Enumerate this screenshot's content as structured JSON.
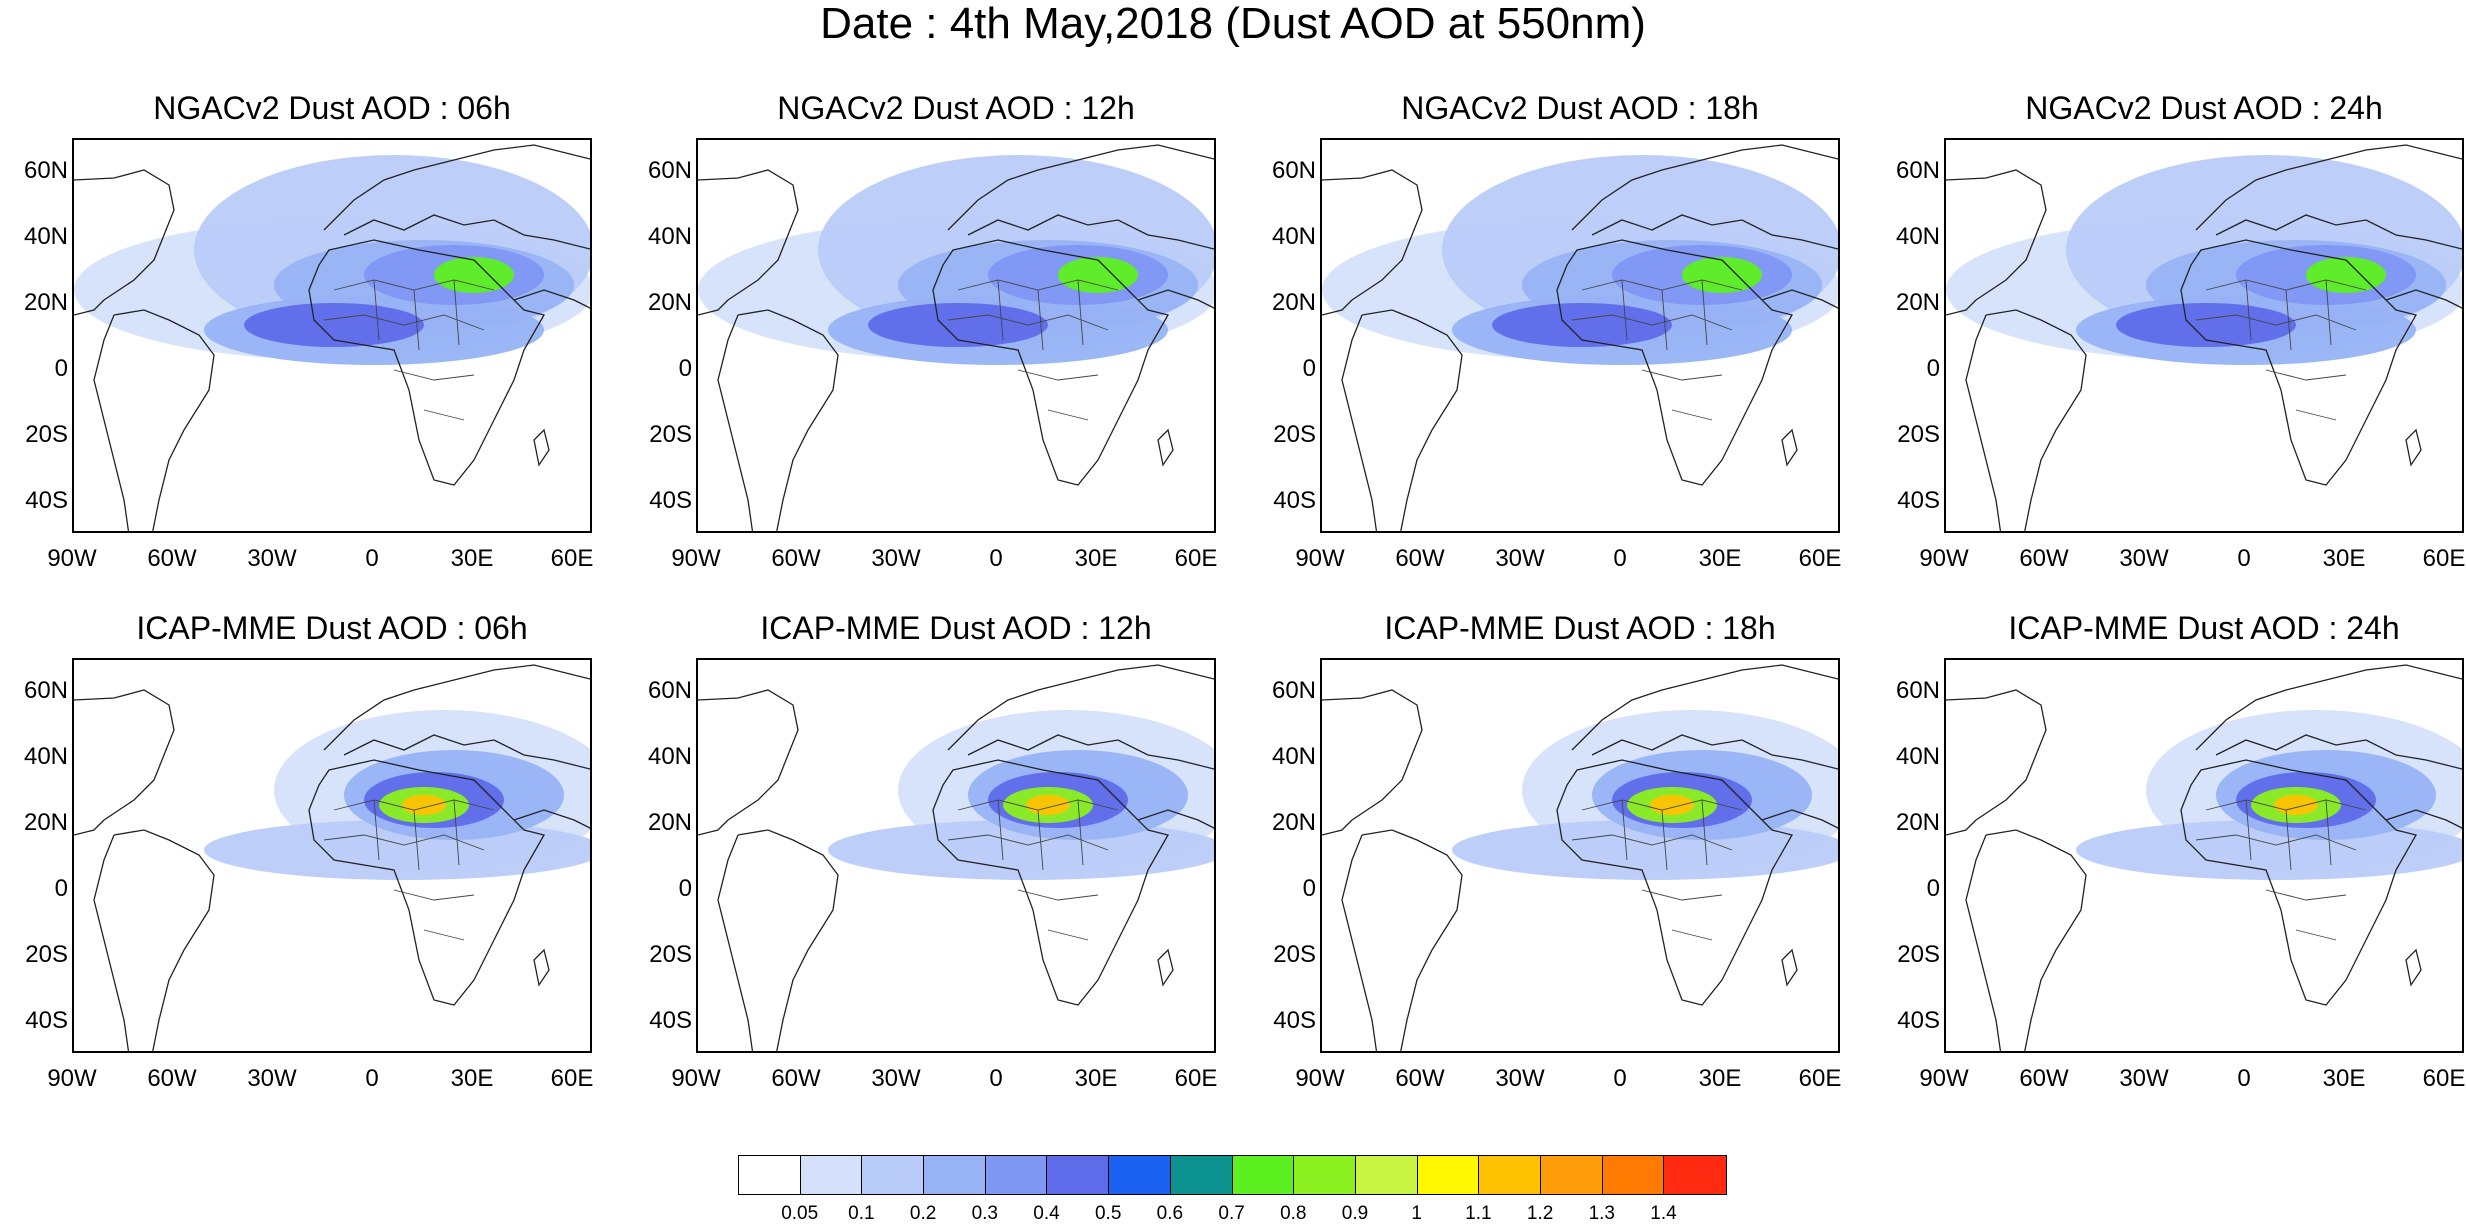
{
  "title": "Date : 4th May,2018 (Dust AOD at 550nm)",
  "lat_ticks": [
    "60N",
    "40N",
    "20N",
    "0",
    "20S",
    "40S"
  ],
  "lon_ticks": [
    "90W",
    "60W",
    "30W",
    "0",
    "30E",
    "60E"
  ],
  "panels": [
    {
      "title": "NGACv2 Dust AOD : 06h",
      "model": "NGACv2",
      "hour": "06h"
    },
    {
      "title": "NGACv2 Dust AOD : 12h",
      "model": "NGACv2",
      "hour": "12h"
    },
    {
      "title": "NGACv2 Dust AOD : 18h",
      "model": "NGACv2",
      "hour": "18h"
    },
    {
      "title": "NGACv2 Dust AOD : 24h",
      "model": "NGACv2",
      "hour": "24h"
    },
    {
      "title": "ICAP-MME Dust AOD : 06h",
      "model": "ICAP-MME",
      "hour": "06h"
    },
    {
      "title": "ICAP-MME Dust AOD : 12h",
      "model": "ICAP-MME",
      "hour": "12h"
    },
    {
      "title": "ICAP-MME Dust AOD : 18h",
      "model": "ICAP-MME",
      "hour": "18h"
    },
    {
      "title": "ICAP-MME Dust AOD : 24h",
      "model": "ICAP-MME",
      "hour": "24h"
    }
  ],
  "colorbar": {
    "levels": [
      "0.05",
      "0.1",
      "0.2",
      "0.3",
      "0.4",
      "0.5",
      "0.6",
      "0.7",
      "0.8",
      "0.9",
      "1",
      "1.1",
      "1.2",
      "1.3",
      "1.4"
    ],
    "colors": [
      "#ffffff",
      "#d5e0fb",
      "#b9cbf8",
      "#97b3f6",
      "#7f98f3",
      "#5f6cea",
      "#1c62f0",
      "#0c9390",
      "#5cf020",
      "#8cf020",
      "#c7f542",
      "#fff700",
      "#ffc200",
      "#ff9e0a",
      "#ff7a00",
      "#ff2a10"
    ]
  }
}
